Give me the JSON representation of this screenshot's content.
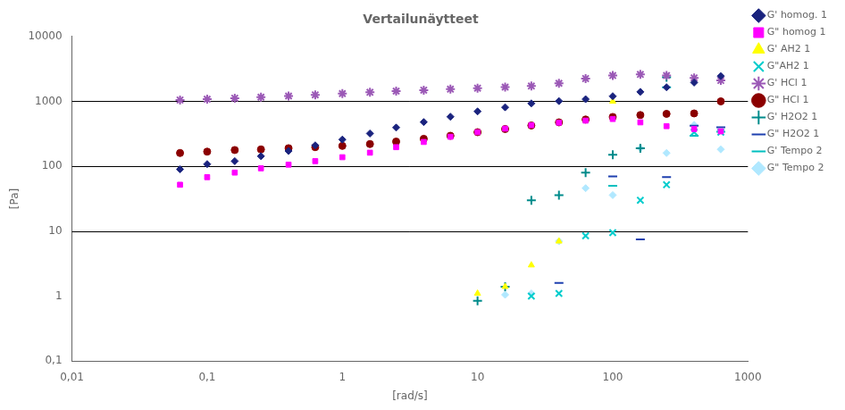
{
  "chart_data": {
    "type": "scatter",
    "title": "Vertailunäytteet",
    "x_label": "[rad/s]",
    "y_label": "[Pa]",
    "log": true,
    "xlim": [
      0.01,
      1000
    ],
    "ylim": [
      0.1,
      10000
    ],
    "xticks": [
      {
        "value": 0.01,
        "label": "0,01"
      },
      {
        "value": 0.1,
        "label": "0,1"
      },
      1,
      10,
      100,
      1000
    ],
    "yticks": [
      {
        "value": 0.1,
        "label": "0,1"
      },
      1,
      10,
      100,
      1000,
      10000
    ],
    "grid": false,
    "legend": "right",
    "hlines": [
      10,
      100,
      1000
    ],
    "series": [
      {
        "name": "G' homog. 1",
        "color": "#1A237E",
        "marker": "diamond",
        "x": [
          0.063,
          0.1,
          0.16,
          0.25,
          0.4,
          0.63,
          1.0,
          1.6,
          2.5,
          4.0,
          6.3,
          10.0,
          16.0,
          25.0,
          40.0,
          63.0,
          100.0,
          160.0,
          250.0,
          400.0,
          630.0
        ],
        "values": [
          90,
          108,
          120,
          143,
          172,
          210,
          258,
          320,
          395,
          480,
          580,
          700,
          810,
          930,
          1010,
          1080,
          1200,
          1400,
          1650,
          1950,
          2450
        ]
      },
      {
        "name": "G\" homog 1",
        "color": "#FF00FF",
        "marker": "square",
        "x": [
          0.063,
          0.1,
          0.16,
          0.25,
          0.4,
          0.63,
          1.0,
          1.6,
          2.5,
          4.0,
          6.3,
          10.0,
          16.0,
          25.0,
          40.0,
          63.0,
          100.0,
          160.0,
          250.0,
          400.0,
          630.0
        ],
        "values": [
          52,
          68,
          80,
          93,
          106,
          120,
          138,
          162,
          197,
          237,
          285,
          335,
          380,
          430,
          470,
          505,
          535,
          475,
          415,
          375,
          345
        ]
      },
      {
        "name": "G' AH2 1",
        "color": "#FFFF00",
        "marker": "triangle",
        "x": [
          10.0,
          16.0,
          25.0,
          40.0,
          100.0
        ],
        "values": [
          1.1,
          1.4,
          3.0,
          7.0,
          1000
        ]
      },
      {
        "name": "G\"AH2 1",
        "color": "#00CCCC",
        "marker": "x",
        "x": [
          25.0,
          40.0,
          63.0,
          100.0,
          160.0,
          250.0,
          400.0,
          630.0
        ],
        "values": [
          1.0,
          1.1,
          8.5,
          9.5,
          30,
          52,
          335,
          335
        ]
      },
      {
        "name": "G' HCl 1",
        "color": "#9B59B6",
        "marker": "star",
        "x": [
          0.063,
          0.1,
          0.16,
          0.25,
          0.4,
          0.63,
          1.0,
          1.6,
          2.5,
          4.0,
          6.3,
          10.0,
          16.0,
          25.0,
          40.0,
          63.0,
          100.0,
          160.0,
          250.0,
          400.0,
          630.0
        ],
        "values": [
          1050,
          1080,
          1120,
          1160,
          1210,
          1260,
          1320,
          1380,
          1440,
          1490,
          1540,
          1600,
          1660,
          1720,
          1900,
          2250,
          2500,
          2600,
          2500,
          2300,
          2100
        ]
      },
      {
        "name": "G\" HCl 1",
        "color": "#8B0000",
        "marker": "circle",
        "x": [
          0.063,
          0.1,
          0.16,
          0.25,
          0.4,
          0.63,
          1.0,
          1.6,
          2.5,
          4.0,
          6.3,
          10.0,
          16.0,
          25.0,
          40.0,
          63.0,
          100.0,
          160.0,
          250.0,
          400.0,
          630.0
        ],
        "values": [
          160,
          168,
          178,
          182,
          190,
          197,
          206,
          220,
          240,
          265,
          295,
          335,
          375,
          425,
          475,
          525,
          575,
          615,
          642,
          652,
          1000
        ]
      },
      {
        "name": "G' H2O2 1",
        "color": "#008B8B",
        "marker": "plus",
        "x": [
          10.0,
          16.0,
          25.0,
          40.0,
          63.0,
          100.0,
          160.0,
          250.0
        ],
        "values": [
          0.85,
          1.4,
          30,
          36,
          80,
          150,
          190,
          2350
        ]
      },
      {
        "name": "G\" H2O2 1",
        "color": "#1E40AF",
        "marker": "hline",
        "x": [
          40.0,
          100.0,
          160.0,
          250.0,
          400.0,
          630.0
        ],
        "values": [
          1.6,
          70,
          7.5,
          68,
          420,
          400
        ]
      },
      {
        "name": "G' Tempo 2",
        "color": "#00BFBF",
        "marker": "hline",
        "x": [
          100.0,
          160.0,
          250.0,
          400.0,
          630.0
        ],
        "values": [
          50,
          190,
          1650,
          295,
          340
        ]
      },
      {
        "name": "G\" Tempo 2",
        "color": "#B0E8FF",
        "marker": "diamond",
        "x": [
          16.0,
          25.0,
          40.0,
          63.0,
          100.0,
          160.0,
          250.0,
          400.0,
          630.0
        ],
        "values": [
          1.05,
          1.1,
          7.0,
          46,
          36,
          190,
          160,
          435,
          182
        ]
      }
    ]
  }
}
